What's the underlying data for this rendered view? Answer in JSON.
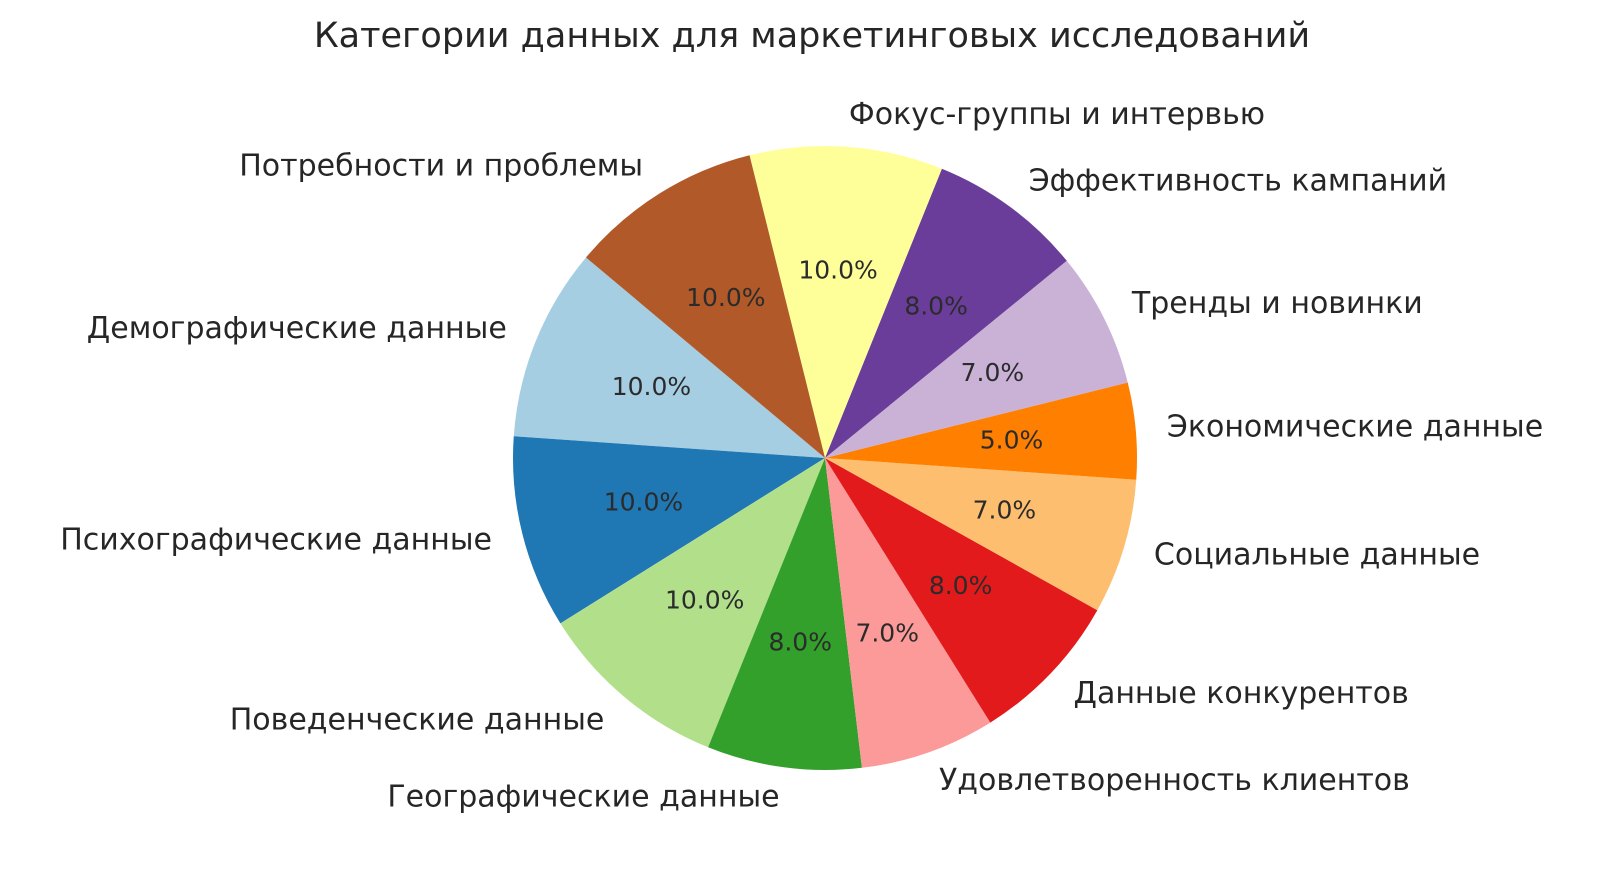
{
  "chart_data": {
    "type": "pie",
    "title": "Категории данных для маркетинговых исследований",
    "legend": "none",
    "start_angle_deg": 140,
    "direction": "counterclockwise",
    "background_color": "#ffffff",
    "text_color": "#262626",
    "slices": [
      {
        "label": "Демографические данные",
        "value": 10.0,
        "pct_label": "10.0%",
        "color": "#a6cee3"
      },
      {
        "label": "Психографические данные",
        "value": 10.0,
        "pct_label": "10.0%",
        "color": "#1f78b4"
      },
      {
        "label": "Поведенческие данные",
        "value": 10.0,
        "pct_label": "10.0%",
        "color": "#b2df8a"
      },
      {
        "label": "Географические данные",
        "value": 8.0,
        "pct_label": "8.0%",
        "color": "#33a02c"
      },
      {
        "label": "Удовлетворенность клиентов",
        "value": 7.0,
        "pct_label": "7.0%",
        "color": "#fb9a99"
      },
      {
        "label": "Данные конкурентов",
        "value": 8.0,
        "pct_label": "8.0%",
        "color": "#e31a1c"
      },
      {
        "label": "Социальные данные",
        "value": 7.0,
        "pct_label": "7.0%",
        "color": "#fdbf6f"
      },
      {
        "label": "Экономические данные",
        "value": 5.0,
        "pct_label": "5.0%",
        "color": "#ff7f00"
      },
      {
        "label": "Тренды и новинки",
        "value": 7.0,
        "pct_label": "7.0%",
        "color": "#cab2d6"
      },
      {
        "label": "Эффективность кампаний",
        "value": 8.0,
        "pct_label": "8.0%",
        "color": "#6a3d9a"
      },
      {
        "label": "Фокус-группы и интервью",
        "value": 10.0,
        "pct_label": "10.0%",
        "color": "#ffff99"
      },
      {
        "label": "Потребности и проблемы",
        "value": 10.0,
        "pct_label": "10.0%",
        "color": "#b15928"
      }
    ]
  }
}
